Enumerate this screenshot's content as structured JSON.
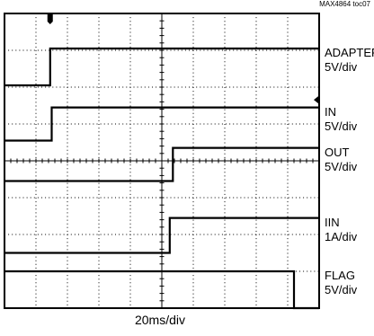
{
  "figure_id": "MAX4864 toc07",
  "timebase": "20ms/div",
  "chart_data": {
    "type": "line",
    "title": "",
    "xlabel": "20ms/div",
    "xlim": [
      0,
      200
    ],
    "x_unit": "ms",
    "x_divisions": 10,
    "y_divisions": 8,
    "grid": true,
    "trace_color": "#000000",
    "series": [
      {
        "name": "ADAPTER",
        "scale": "5V/div",
        "unit": "V",
        "ground_div": 6.05,
        "points": [
          [
            0,
            0
          ],
          [
            29,
            0
          ],
          [
            29,
            5.0
          ],
          [
            200,
            5.0
          ]
        ]
      },
      {
        "name": "IN",
        "scale": "5V/div",
        "unit": "V",
        "ground_div": 4.55,
        "points": [
          [
            0,
            0
          ],
          [
            30,
            0
          ],
          [
            30,
            4.5
          ],
          [
            200,
            4.5
          ]
        ]
      },
      {
        "name": "OUT",
        "scale": "5V/div",
        "unit": "V",
        "ground_div": 3.45,
        "points": [
          [
            0,
            0
          ],
          [
            107,
            0
          ],
          [
            107,
            4.5
          ],
          [
            200,
            4.5
          ]
        ]
      },
      {
        "name": "IIN",
        "scale": "1A/div",
        "unit": "A",
        "ground_div": 1.5,
        "points": [
          [
            0,
            0
          ],
          [
            105,
            0
          ],
          [
            105,
            0.95
          ],
          [
            200,
            0.95
          ]
        ]
      },
      {
        "name": "FLAG",
        "scale": "5V/div",
        "unit": "V",
        "ground_div": 0,
        "points": [
          [
            0,
            5.0
          ],
          [
            184,
            5.0
          ],
          [
            184,
            0
          ],
          [
            200,
            0
          ]
        ]
      }
    ]
  }
}
